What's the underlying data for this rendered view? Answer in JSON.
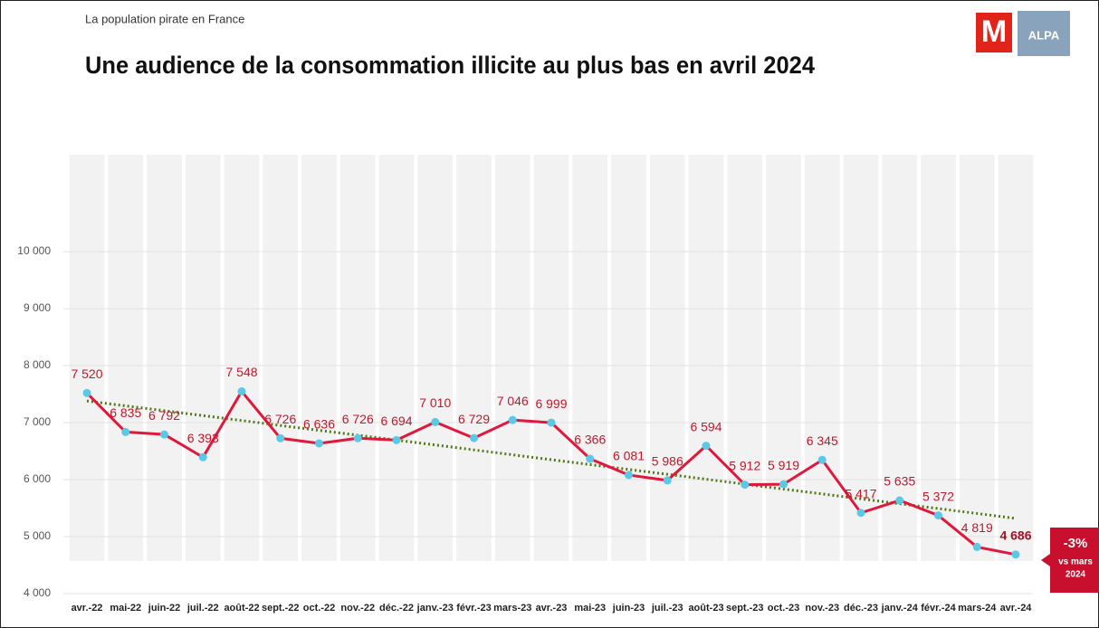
{
  "chart_data": {
    "type": "line",
    "kicker": "La population pirate en France",
    "title": "Une audience de la consommation illicite au plus bas en avril 2024",
    "logos": [
      "M",
      "ALPA"
    ],
    "categories": [
      "avr.-22",
      "mai-22",
      "juin-22",
      "juil.-22",
      "août-22",
      "sept.-22",
      "oct.-22",
      "nov.-22",
      "déc.-22",
      "janv.-23",
      "févr.-23",
      "mars-23",
      "avr.-23",
      "mai-23",
      "juin-23",
      "juil.-23",
      "août-23",
      "sept.-23",
      "oct.-23",
      "nov.-23",
      "déc.-23",
      "janv.-24",
      "févr.-24",
      "mars-24",
      "avr.-24"
    ],
    "series": [
      {
        "name": "Audience",
        "color": "#e0183c",
        "marker_color": "#5bc8e6",
        "values": [
          7520,
          6835,
          6792,
          6393,
          7548,
          6726,
          6636,
          6726,
          6694,
          7010,
          6729,
          7046,
          6999,
          6366,
          6081,
          5986,
          6594,
          5912,
          5919,
          6345,
          5417,
          5635,
          5372,
          4819,
          4686
        ],
        "value_labels": [
          "7 520",
          "6 835",
          "6 792",
          "6 393",
          "7 548",
          "6 726",
          "6 636",
          "6 726",
          "6 694",
          "7 010",
          "6 729",
          "7 046",
          "6 999",
          "6 366",
          "6 081",
          "5 986",
          "6 594",
          "5 912",
          "5 919",
          "6 345",
          "5 417",
          "5 635",
          "5 372",
          "4 819",
          "4 686"
        ]
      }
    ],
    "trend": {
      "start": 7380,
      "end": 5320,
      "color": "#4f7a12"
    },
    "ylim": [
      4000,
      11700
    ],
    "yticks": [
      {
        "value": 4000,
        "label": "4 000"
      },
      {
        "value": 5000,
        "label": "5 000"
      },
      {
        "value": 6000,
        "label": "6 000"
      },
      {
        "value": 7000,
        "label": "7 000"
      },
      {
        "value": 8000,
        "label": "8 000"
      },
      {
        "value": 9000,
        "label": "9 000"
      },
      {
        "value": 10000,
        "label": "10 000"
      }
    ],
    "grid": true,
    "annotation": {
      "value": "-3%",
      "lines": [
        "vs mars",
        "2024"
      ],
      "color": "#c8102e"
    }
  }
}
